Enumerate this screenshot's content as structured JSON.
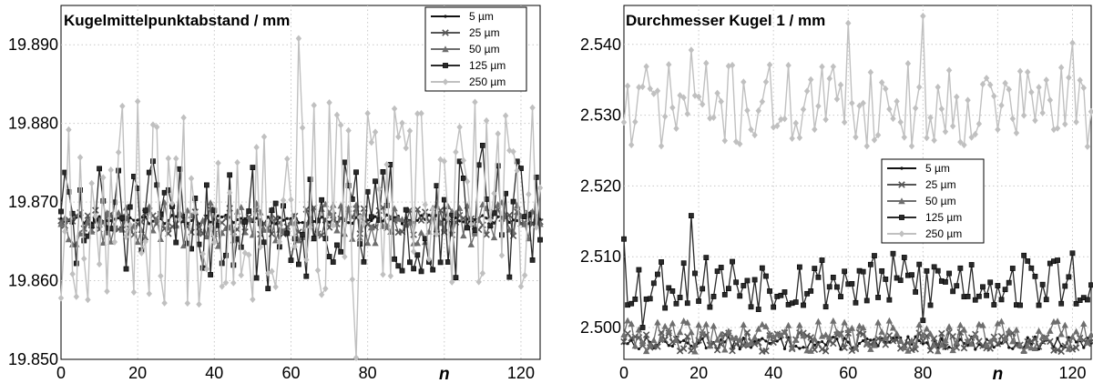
{
  "chart_data": [
    {
      "type": "line",
      "title": "Kugelmittelpunktabstand / mm",
      "xlabel": "n",
      "ylabel": "",
      "xlim": [
        0,
        125
      ],
      "ylim": [
        19.85,
        19.895
      ],
      "xticks": [
        0,
        20,
        40,
        60,
        80,
        100,
        120
      ],
      "xtick_labels": [
        "0",
        "20",
        "40",
        "60",
        "80",
        "",
        "120"
      ],
      "yticks": [
        19.85,
        19.86,
        19.87,
        19.88,
        19.89
      ],
      "ytick_labels": [
        "19.850",
        "19.860",
        "19.870",
        "19.880",
        "19.890"
      ],
      "grid": true,
      "legend": "top-right",
      "series": [
        {
          "name": "5 µm",
          "color": "#111111",
          "marker": "dot",
          "base": 19.8678,
          "noise": 0.0006,
          "seed": 11,
          "points": [
            [
              0,
              19.8679
            ],
            [
              20,
              19.8677
            ],
            [
              40,
              19.8678
            ],
            [
              60,
              19.8679
            ],
            [
              80,
              19.8677
            ],
            [
              100,
              19.8678
            ],
            [
              125,
              19.8678
            ]
          ]
        },
        {
          "name": "25 µm",
          "color": "#555555",
          "marker": "x",
          "base": 19.8675,
          "noise": 0.0018,
          "seed": 23,
          "points": [
            [
              0,
              19.8676
            ],
            [
              30,
              19.8672
            ],
            [
              60,
              19.8676
            ],
            [
              90,
              19.8673
            ],
            [
              125,
              19.8675
            ]
          ]
        },
        {
          "name": "50 µm",
          "color": "#6e6e6e",
          "marker": "triangle",
          "base": 19.8672,
          "noise": 0.0028,
          "seed": 37,
          "points": [
            [
              0,
              19.8672
            ],
            [
              30,
              19.867
            ],
            [
              60,
              19.8674
            ],
            [
              90,
              19.8671
            ],
            [
              125,
              19.8672
            ]
          ]
        },
        {
          "name": "125 µm",
          "color": "#2a2a2a",
          "marker": "square",
          "base": 19.8677,
          "noise": 0.0075,
          "seed": 51,
          "points": [
            [
              0,
              19.8688
            ],
            [
              4,
              19.8622
            ],
            [
              15,
              19.874
            ],
            [
              54,
              19.859
            ],
            [
              110,
              19.8772
            ],
            [
              125,
              19.8652
            ]
          ]
        },
        {
          "name": "250 µm",
          "color": "#c0c0c0",
          "marker": "diamond",
          "base": 19.87,
          "noise": 0.013,
          "seed": 67,
          "points": [
            [
              0,
              19.8578
            ],
            [
              2,
              19.8792
            ],
            [
              20,
              19.8828
            ],
            [
              62,
              19.8908
            ],
            [
              77,
              19.8502
            ],
            [
              123,
              19.882
            ],
            [
              125,
              19.8718
            ]
          ]
        }
      ]
    },
    {
      "type": "line",
      "title": "Durchmesser Kugel 1 / mm",
      "xlabel": "n",
      "ylabel": "",
      "xlim": [
        0,
        125
      ],
      "ylim": [
        2.4955,
        2.5455
      ],
      "xticks": [
        0,
        20,
        40,
        60,
        80,
        100,
        120
      ],
      "xtick_labels": [
        "0",
        "20",
        "40",
        "60",
        "80",
        "",
        "120"
      ],
      "yticks": [
        2.5,
        2.51,
        2.52,
        2.53,
        2.54
      ],
      "ytick_labels": [
        "2.500",
        "2.510",
        "2.520",
        "2.530",
        "2.540"
      ],
      "grid": true,
      "legend": "center-right",
      "series": [
        {
          "name": "5 µm",
          "color": "#111111",
          "marker": "dot",
          "base": 2.4978,
          "noise": 0.0009,
          "seed": 13,
          "points": [
            [
              0,
              2.4978
            ],
            [
              40,
              2.498
            ],
            [
              80,
              2.4977
            ],
            [
              125,
              2.4978
            ]
          ]
        },
        {
          "name": "25 µm",
          "color": "#555555",
          "marker": "x",
          "base": 2.498,
          "noise": 0.0014,
          "seed": 29,
          "points": [
            [
              0,
              2.498
            ],
            [
              40,
              2.4979
            ],
            [
              80,
              2.4981
            ],
            [
              125,
              2.498
            ]
          ]
        },
        {
          "name": "50 µm",
          "color": "#6e6e6e",
          "marker": "triangle",
          "base": 2.4988,
          "noise": 0.0022,
          "seed": 41,
          "points": [
            [
              0,
              2.499
            ],
            [
              40,
              2.4987
            ],
            [
              80,
              2.4989
            ],
            [
              125,
              2.499
            ]
          ]
        },
        {
          "name": "125 µm",
          "color": "#2a2a2a",
          "marker": "square",
          "base": 2.5065,
          "noise": 0.004,
          "seed": 53,
          "points": [
            [
              0,
              2.5125
            ],
            [
              3,
              2.504
            ],
            [
              5,
              2.5
            ],
            [
              18,
              2.5158
            ],
            [
              80,
              2.501
            ],
            [
              120,
              2.5105
            ],
            [
              125,
              2.506
            ]
          ]
        },
        {
          "name": "250 µm",
          "color": "#c0c0c0",
          "marker": "diamond",
          "base": 2.5315,
          "noise": 0.006,
          "seed": 71,
          "points": [
            [
              0,
              2.529
            ],
            [
              2,
              2.5258
            ],
            [
              18,
              2.5392
            ],
            [
              60,
              2.543
            ],
            [
              80,
              2.544
            ],
            [
              120,
              2.5402
            ],
            [
              125,
              2.5305
            ]
          ]
        }
      ]
    }
  ]
}
